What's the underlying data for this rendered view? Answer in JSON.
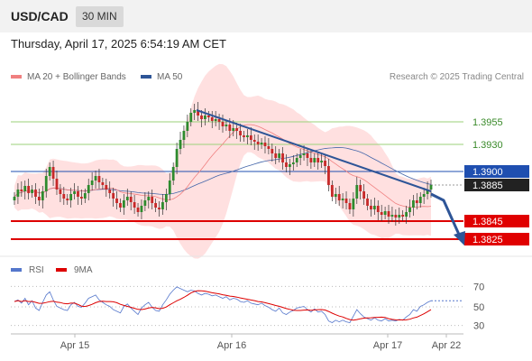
{
  "header": {
    "symbol": "USD/CAD",
    "timeframe": "30 MIN"
  },
  "datetime": "Thursday, April 17, 2025 6:54:19 AM CET",
  "legend": [
    {
      "label": "MA 20 + Bollinger Bands",
      "color": "#f08080"
    },
    {
      "label": "MA 50",
      "color": "#2e5597"
    }
  ],
  "research": "Research © 2025 Trading Central",
  "colors": {
    "up": "#2e8b2e",
    "down": "#c62828",
    "ma20": "#f08080",
    "band": "#ffd6d6",
    "ma50": "#4466aa",
    "trend": "#2e5597",
    "pivot": "#1f4fb0",
    "support": "#dd0000",
    "resistance": "#9bd27a",
    "rsi": "#5577cc",
    "rsi_ma": "#dd0000"
  },
  "chart_data": [
    {
      "type": "candlestick",
      "x_labels": [
        "Apr 15",
        "Apr 16",
        "Apr 17",
        "Apr 22"
      ],
      "ylim": [
        1.381,
        1.3995
      ],
      "levels": [
        {
          "label": "1.3955",
          "value": 1.3955,
          "kind": "resistance"
        },
        {
          "label": "1.3930",
          "value": 1.393,
          "kind": "resistance"
        },
        {
          "label": "1.3900",
          "value": 1.39,
          "kind": "pivot"
        },
        {
          "label": "1.3885",
          "value": 1.3885,
          "kind": "last"
        },
        {
          "label": "1.3845",
          "value": 1.3845,
          "kind": "support"
        },
        {
          "label": "1.3825",
          "value": 1.3825,
          "kind": "support"
        }
      ],
      "closes": [
        1.3872,
        1.388,
        1.3878,
        1.3884,
        1.3876,
        1.388,
        1.3872,
        1.3868,
        1.3878,
        1.3895,
        1.3905,
        1.3892,
        1.388,
        1.3875,
        1.387,
        1.3868,
        1.3875,
        1.3878,
        1.3872,
        1.387,
        1.3876,
        1.3885,
        1.389,
        1.3895,
        1.3888,
        1.3885,
        1.388,
        1.3876,
        1.387,
        1.3865,
        1.386,
        1.3868,
        1.3872,
        1.3866,
        1.386,
        1.3855,
        1.3862,
        1.3868,
        1.3872,
        1.3865,
        1.386,
        1.3858,
        1.3866,
        1.3875,
        1.389,
        1.3905,
        1.3925,
        1.3935,
        1.3945,
        1.3955,
        1.3965,
        1.3968,
        1.3962,
        1.3958,
        1.3962,
        1.396,
        1.3956,
        1.3958,
        1.3955,
        1.395,
        1.3952,
        1.3945,
        1.3948,
        1.3945,
        1.394,
        1.3938,
        1.394,
        1.3935,
        1.3933,
        1.393,
        1.3932,
        1.3928,
        1.3925,
        1.392,
        1.3915,
        1.392,
        1.391,
        1.3905,
        1.3908,
        1.391,
        1.3915,
        1.3918,
        1.392,
        1.3915,
        1.391,
        1.3915,
        1.391,
        1.3912,
        1.3906,
        1.3885,
        1.3872,
        1.3875,
        1.3868,
        1.387,
        1.3865,
        1.3858,
        1.387,
        1.3885,
        1.3878,
        1.387,
        1.3862,
        1.3858,
        1.3862,
        1.3855,
        1.3852,
        1.3856,
        1.385,
        1.3852,
        1.3849,
        1.3852,
        1.385,
        1.3855,
        1.386,
        1.3868,
        1.3865,
        1.3872,
        1.3875,
        1.388,
        1.3885
      ],
      "ma20_approx": true
    },
    {
      "type": "line",
      "title": "RSI",
      "series": [
        {
          "name": "RSI"
        },
        {
          "name": "9MA"
        }
      ],
      "ylim": [
        20,
        80
      ],
      "y_ticks": [
        70,
        50,
        30
      ],
      "rsi_values": [
        56,
        58,
        54,
        60,
        52,
        57,
        48,
        45,
        55,
        64,
        68,
        58,
        50,
        48,
        46,
        45,
        52,
        55,
        50,
        49,
        54,
        60,
        62,
        64,
        58,
        55,
        52,
        50,
        46,
        44,
        42,
        50,
        53,
        48,
        44,
        40,
        48,
        52,
        55,
        49,
        45,
        44,
        52,
        58,
        65,
        70,
        74,
        72,
        70,
        68,
        70,
        69,
        66,
        64,
        66,
        65,
        63,
        64,
        62,
        60,
        62,
        58,
        60,
        59,
        56,
        55,
        57,
        54,
        53,
        52,
        54,
        51,
        49,
        46,
        44,
        48,
        42,
        40,
        43,
        45,
        48,
        49,
        50,
        46,
        43,
        47,
        43,
        44,
        40,
        32,
        30,
        33,
        31,
        33,
        31,
        30,
        38,
        46,
        41,
        37,
        35,
        33,
        36,
        33,
        32,
        35,
        32,
        33,
        32,
        34,
        33,
        37,
        40,
        46,
        44,
        50,
        52,
        55,
        57
      ]
    }
  ]
}
